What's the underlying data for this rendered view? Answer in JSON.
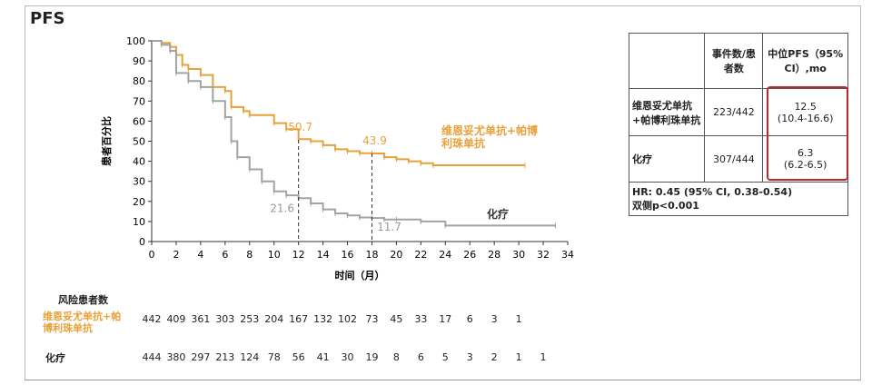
{
  "title": "PFS",
  "colors": {
    "treatment": "#E8A13A",
    "chemo": "#A3A3A3",
    "highlight": "#C0272D"
  },
  "chart_data": {
    "type": "line",
    "ylabel": "患者百分比",
    "xlabel": "时间（月）",
    "xlim": [
      0,
      34
    ],
    "ylim": [
      0,
      100
    ],
    "x_ticks": [
      0,
      2,
      4,
      6,
      8,
      10,
      12,
      14,
      16,
      18,
      20,
      22,
      24,
      26,
      28,
      30,
      32,
      34
    ],
    "y_ticks": [
      0,
      10,
      20,
      30,
      40,
      50,
      60,
      70,
      80,
      90,
      100
    ],
    "series": [
      {
        "name": "维恩妥尤单抗+帕博利珠单抗",
        "label_lines": [
          "维恩妥尤单抗+帕博",
          "利珠单抗"
        ],
        "points": [
          [
            0,
            100
          ],
          [
            0.8,
            99
          ],
          [
            1.5,
            97
          ],
          [
            2,
            93
          ],
          [
            2.5,
            88
          ],
          [
            3,
            86
          ],
          [
            4,
            83
          ],
          [
            5,
            77
          ],
          [
            6,
            75
          ],
          [
            6.5,
            67
          ],
          [
            7.5,
            65
          ],
          [
            8,
            63
          ],
          [
            10,
            59
          ],
          [
            11,
            56
          ],
          [
            12,
            51
          ],
          [
            13,
            50
          ],
          [
            14,
            48
          ],
          [
            15,
            46
          ],
          [
            16,
            45
          ],
          [
            17,
            44
          ],
          [
            18,
            43.9
          ],
          [
            19,
            42
          ],
          [
            20,
            41
          ],
          [
            21,
            40
          ],
          [
            22,
            39
          ],
          [
            23,
            38
          ],
          [
            30.5,
            38
          ]
        ],
        "annotation": {
          "x": 12,
          "y": 50.7,
          "text": "50.7"
        }
      },
      {
        "name": "化疗",
        "label_lines": [
          "化疗"
        ],
        "points": [
          [
            0,
            100
          ],
          [
            0.8,
            98
          ],
          [
            1.5,
            95
          ],
          [
            2,
            84
          ],
          [
            3,
            80
          ],
          [
            4,
            77
          ],
          [
            5,
            70
          ],
          [
            6,
            62
          ],
          [
            6.5,
            50
          ],
          [
            7,
            42
          ],
          [
            8,
            36
          ],
          [
            9,
            30
          ],
          [
            10,
            25
          ],
          [
            11,
            23
          ],
          [
            12,
            21.6
          ],
          [
            13,
            19
          ],
          [
            14,
            16
          ],
          [
            15,
            14
          ],
          [
            16,
            13
          ],
          [
            17,
            12
          ],
          [
            18,
            11.7
          ],
          [
            19,
            11
          ],
          [
            20,
            11
          ],
          [
            22,
            10
          ],
          [
            24,
            8
          ],
          [
            33,
            8
          ]
        ],
        "annotation": {
          "x": 18,
          "y": 11.7,
          "text": "11.7"
        },
        "annotation2": {
          "x": 12,
          "y": 21.6,
          "text": "21.6"
        }
      }
    ]
  },
  "risk_table": {
    "header": "风险患者数",
    "rows": [
      {
        "label_lines": [
          "维恩妥尤单抗+帕",
          "博利珠单抗"
        ],
        "values": [
          "442",
          "409",
          "361",
          "303",
          "253",
          "204",
          "167",
          "132",
          "102",
          "73",
          "45",
          "33",
          "17",
          "6",
          "3",
          "1"
        ]
      },
      {
        "label_lines": [
          "化疗"
        ],
        "values": [
          "444",
          "380",
          "297",
          "213",
          "124",
          "78",
          "56",
          "41",
          "30",
          "19",
          "8",
          "6",
          "5",
          "3",
          "2",
          "1",
          "1"
        ]
      }
    ]
  },
  "stats_table": {
    "headers": [
      "",
      "事件数/患者数",
      "中位PFS（95% CI）,mo"
    ],
    "rows": [
      {
        "label": "维恩妥尤单抗+帕博利珠单抗",
        "events": "223/442",
        "median": "12.5",
        "ci": "(10.4-16.6)"
      },
      {
        "label": "化疗",
        "events": "307/444",
        "median": "6.3",
        "ci": "(6.2-6.5)"
      }
    ],
    "hr_line1": "HR: 0.45 (95% CI, 0.38-0.54)",
    "hr_line2": "双侧p<0.001"
  }
}
